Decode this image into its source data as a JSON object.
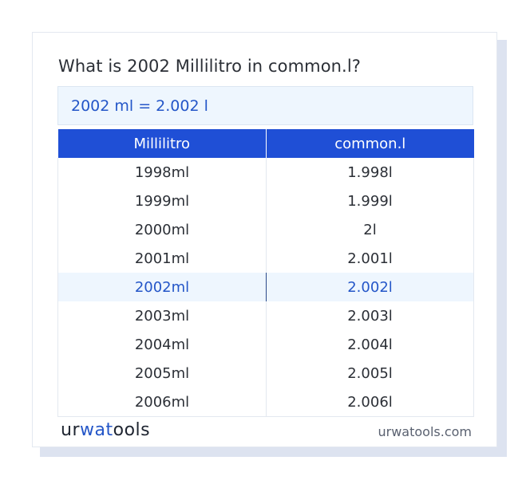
{
  "title": "What is 2002 Millilitro in common.l?",
  "result": "2002 ml = 2.002 l",
  "table": {
    "headers": [
      "Millilitro",
      "common.l"
    ],
    "rows": [
      {
        "ml": "1998ml",
        "l": "1.998l"
      },
      {
        "ml": "1999ml",
        "l": "1.999l"
      },
      {
        "ml": "2000ml",
        "l": "2l"
      },
      {
        "ml": "2001ml",
        "l": "2.001l"
      },
      {
        "ml": "2002ml",
        "l": "2.002l"
      },
      {
        "ml": "2003ml",
        "l": "2.003l"
      },
      {
        "ml": "2004ml",
        "l": "2.004l"
      },
      {
        "ml": "2005ml",
        "l": "2.005l"
      },
      {
        "ml": "2006ml",
        "l": "2.006l"
      }
    ],
    "highlighted_row": 4
  },
  "footer": {
    "logo_part1": "ur",
    "logo_part2": "wat",
    "logo_part3": "ools",
    "site": "urwatools.com"
  },
  "colors": {
    "accent": "#1f4fd6",
    "highlight_bg": "#eef6fe",
    "highlight_text": "#2456c8"
  }
}
